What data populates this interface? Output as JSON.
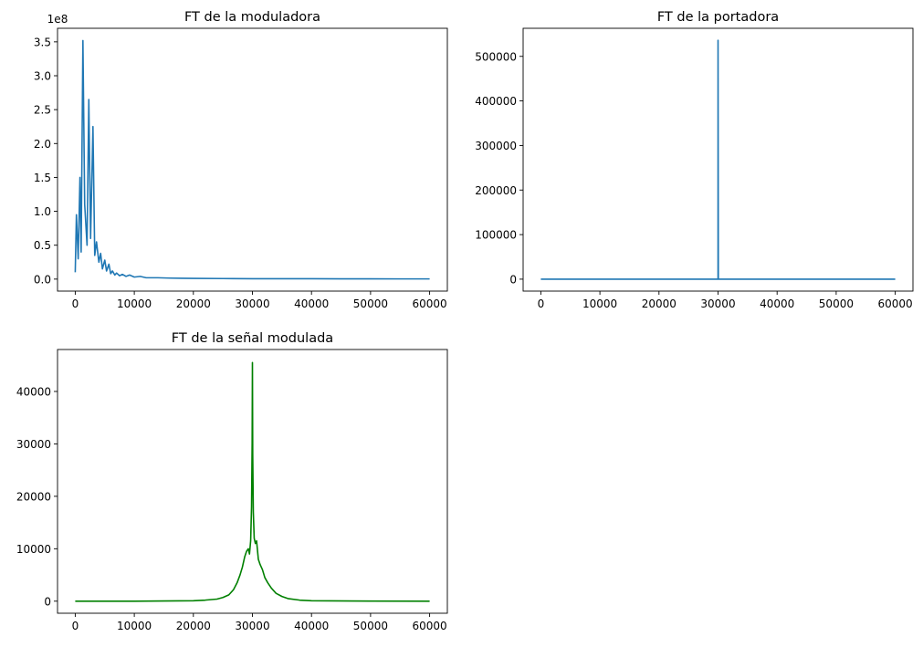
{
  "chart_data": [
    {
      "type": "line",
      "title": "FT de la moduladora",
      "color": "#1f77b4",
      "xlim": [
        -3000,
        63000
      ],
      "ylim": [
        -0.177,
        3.7
      ],
      "y_offset_label": "1e8",
      "xticks": [
        0,
        10000,
        20000,
        30000,
        40000,
        50000,
        60000
      ],
      "xtick_labels": [
        "0",
        "10000",
        "20000",
        "30000",
        "40000",
        "50000",
        "60000"
      ],
      "yticks": [
        0.0,
        0.5,
        1.0,
        1.5,
        2.0,
        2.5,
        3.0,
        3.5
      ],
      "ytick_labels": [
        "0.0",
        "0.5",
        "1.0",
        "1.5",
        "2.0",
        "2.5",
        "3.0",
        "3.5"
      ],
      "series": [
        {
          "x": [
            0,
            200,
            500,
            800,
            1000,
            1300,
            1600,
            2000,
            2300,
            2600,
            3000,
            3300,
            3600,
            4000,
            4300,
            4600,
            5000,
            5300,
            5700,
            6000,
            6300,
            6700,
            7000,
            7500,
            8000,
            8600,
            9200,
            10000,
            11000,
            12000,
            14000,
            16000,
            18000,
            20000,
            25000,
            30000,
            35000,
            40000,
            45000,
            50000,
            55000,
            60000
          ],
          "y": [
            0.1,
            0.95,
            0.3,
            1.5,
            0.4,
            3.52,
            1.1,
            0.5,
            2.65,
            0.6,
            2.25,
            0.35,
            0.55,
            0.25,
            0.38,
            0.15,
            0.28,
            0.12,
            0.22,
            0.08,
            0.12,
            0.06,
            0.09,
            0.05,
            0.07,
            0.04,
            0.06,
            0.03,
            0.04,
            0.02,
            0.02,
            0.015,
            0.012,
            0.01,
            0.008,
            0.006,
            0.005,
            0.005,
            0.004,
            0.004,
            0.003,
            0.003
          ]
        }
      ]
    },
    {
      "type": "line",
      "title": "FT de la portadora",
      "color": "#1f77b4",
      "xlim": [
        -3000,
        63000
      ],
      "ylim": [
        -26800,
        563000
      ],
      "xticks": [
        0,
        10000,
        20000,
        30000,
        40000,
        50000,
        60000
      ],
      "xtick_labels": [
        "0",
        "10000",
        "20000",
        "30000",
        "40000",
        "50000",
        "60000"
      ],
      "yticks": [
        0,
        100000,
        200000,
        300000,
        400000,
        500000
      ],
      "ytick_labels": [
        "0",
        "100000",
        "200000",
        "300000",
        "400000",
        "500000"
      ],
      "series": [
        {
          "x": [
            0,
            29950,
            30000,
            30000,
            30050,
            60000
          ],
          "y": [
            0,
            0,
            0,
            536000,
            0,
            0
          ]
        }
      ]
    },
    {
      "type": "line",
      "title": "FT de la señal modulada",
      "color": "#008000",
      "xlim": [
        -3000,
        63000
      ],
      "ylim": [
        -2300,
        48000
      ],
      "xticks": [
        0,
        10000,
        20000,
        30000,
        40000,
        50000,
        60000
      ],
      "xtick_labels": [
        "0",
        "10000",
        "20000",
        "30000",
        "40000",
        "50000",
        "60000"
      ],
      "yticks": [
        0,
        10000,
        20000,
        30000,
        40000
      ],
      "ytick_labels": [
        "0",
        "10000",
        "20000",
        "30000",
        "40000"
      ],
      "series": [
        {
          "x": [
            0,
            10000,
            20000,
            22000,
            24000,
            25000,
            26000,
            26800,
            27400,
            27900,
            28300,
            28700,
            29000,
            29300,
            29500,
            29700,
            29850,
            29950,
            30000,
            30050,
            30150,
            30300,
            30500,
            30700,
            31000,
            31300,
            31700,
            32100,
            32600,
            33200,
            34000,
            35000,
            36000,
            38000,
            40000,
            50000,
            60000
          ],
          "y": [
            0,
            0,
            80,
            200,
            400,
            700,
            1200,
            2200,
            3500,
            5000,
            6500,
            8500,
            9500,
            10000,
            9000,
            11500,
            18000,
            30000,
            45500,
            28000,
            17000,
            12000,
            11000,
            11500,
            8000,
            7000,
            6000,
            4500,
            3500,
            2500,
            1500,
            900,
            500,
            200,
            80,
            20,
            0
          ]
        }
      ]
    }
  ]
}
